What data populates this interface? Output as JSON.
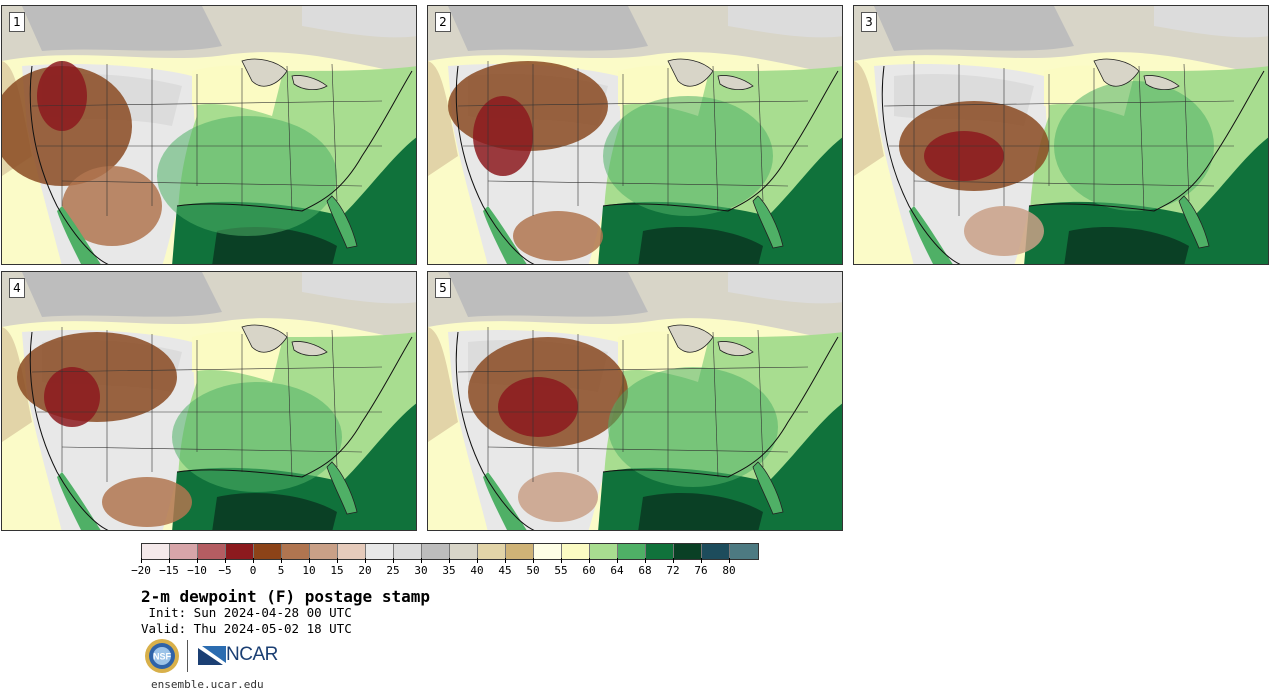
{
  "panels": [
    {
      "label": "1"
    },
    {
      "label": "2"
    },
    {
      "label": "3"
    },
    {
      "label": "4"
    },
    {
      "label": "5"
    }
  ],
  "colorbar": {
    "colors": [
      "#f4e9ea",
      "#d7a5a9",
      "#b45d62",
      "#8c1a1e",
      "#8c4318",
      "#b07550",
      "#c9a087",
      "#e6cbbb",
      "#e8e8e8",
      "#dcdcdc",
      "#bdbdbd",
      "#d8d5c8",
      "#e2d4a8",
      "#cfb377",
      "#fefee6",
      "#fbfbc3",
      "#a8dd90",
      "#4fb066",
      "#10723b",
      "#0a4025",
      "#1d4c5c",
      "#4d7a82"
    ],
    "ticks": [
      "−20",
      "−15",
      "−10",
      "−5",
      "0",
      "5",
      "10",
      "15",
      "20",
      "25",
      "30",
      "35",
      "40",
      "45",
      "50",
      "55",
      "60",
      "64",
      "68",
      "72",
      "76",
      "80"
    ]
  },
  "title": "2-m dewpoint (F) postage stamp",
  "init": " Init: Sun 2024-04-28 00 UTC",
  "valid": "Valid: Thu 2024-05-02 18 UTC",
  "logos": {
    "nsf": "NSF",
    "ncar": "NCAR"
  },
  "site": "ensemble.ucar.edu"
}
